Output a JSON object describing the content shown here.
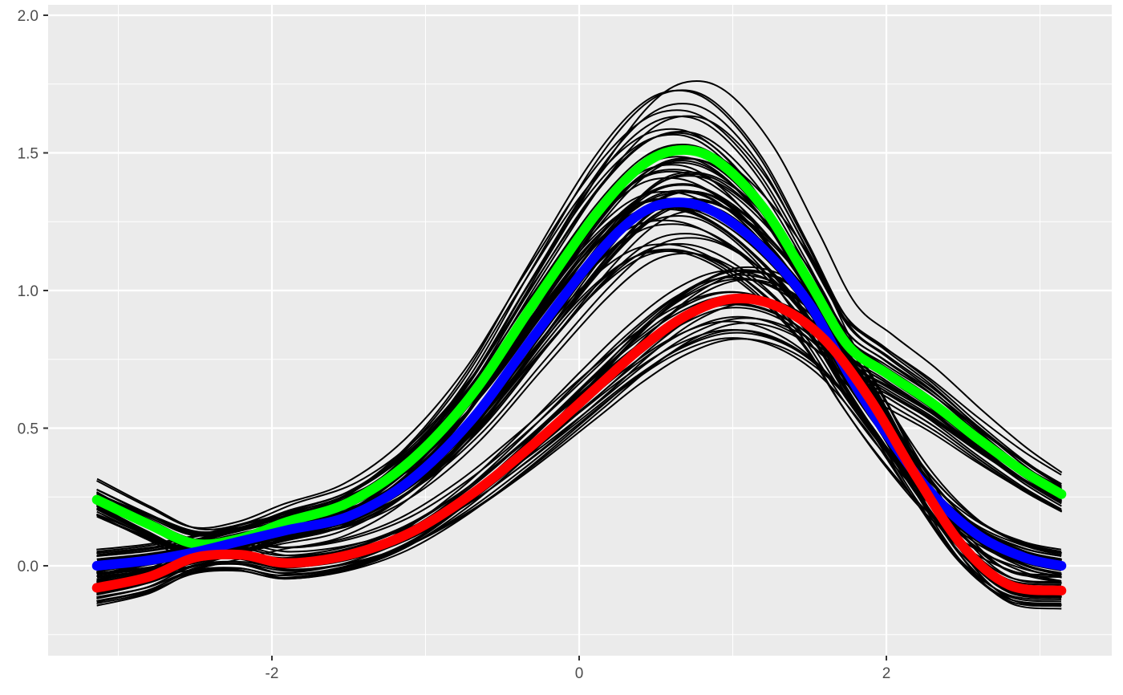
{
  "chart_data": {
    "type": "line",
    "title": "",
    "xlabel": "",
    "ylabel": "",
    "xlim": [
      -3.3,
      3.5
    ],
    "ylim": [
      -0.25,
      2.0
    ],
    "x_ticks": [
      -2,
      0,
      2
    ],
    "x_tick_labels": [
      "-2",
      "0",
      "2"
    ],
    "y_ticks": [
      0.0,
      0.5,
      1.0,
      1.5,
      2.0
    ],
    "y_tick_labels": [
      "0.0",
      "0.5",
      "1.0",
      "1.5",
      "2.0"
    ],
    "grid": true,
    "background": "#ebebeb",
    "grid_color": "#ffffff",
    "highlight_series": [
      {
        "color": "#00ff00",
        "points": [
          [
            -3.14,
            0.24
          ],
          [
            -2.8,
            0.15
          ],
          [
            -2.5,
            0.08
          ],
          [
            -2.2,
            0.1
          ],
          [
            -1.9,
            0.16
          ],
          [
            -1.5,
            0.23
          ],
          [
            -1.1,
            0.38
          ],
          [
            -0.7,
            0.62
          ],
          [
            -0.3,
            0.95
          ],
          [
            0.1,
            1.27
          ],
          [
            0.4,
            1.45
          ],
          [
            0.65,
            1.51
          ],
          [
            0.9,
            1.47
          ],
          [
            1.2,
            1.3
          ],
          [
            1.5,
            1.03
          ],
          [
            1.75,
            0.8
          ],
          [
            2.0,
            0.7
          ],
          [
            2.3,
            0.59
          ],
          [
            2.6,
            0.46
          ],
          [
            2.9,
            0.34
          ],
          [
            3.14,
            0.26
          ]
        ]
      },
      {
        "color": "#0000ff",
        "points": [
          [
            -3.14,
            0.0
          ],
          [
            -2.8,
            0.02
          ],
          [
            -2.5,
            0.05
          ],
          [
            -2.2,
            0.09
          ],
          [
            -1.9,
            0.13
          ],
          [
            -1.5,
            0.18
          ],
          [
            -1.1,
            0.31
          ],
          [
            -0.7,
            0.53
          ],
          [
            -0.3,
            0.83
          ],
          [
            0.1,
            1.12
          ],
          [
            0.4,
            1.28
          ],
          [
            0.65,
            1.32
          ],
          [
            0.9,
            1.28
          ],
          [
            1.2,
            1.15
          ],
          [
            1.5,
            0.95
          ],
          [
            1.75,
            0.7
          ],
          [
            2.0,
            0.48
          ],
          [
            2.3,
            0.26
          ],
          [
            2.6,
            0.11
          ],
          [
            2.9,
            0.03
          ],
          [
            3.14,
            0.0
          ]
        ]
      },
      {
        "color": "#ff0000",
        "points": [
          [
            -3.14,
            -0.08
          ],
          [
            -2.8,
            -0.04
          ],
          [
            -2.5,
            0.03
          ],
          [
            -2.2,
            0.04
          ],
          [
            -1.9,
            0.01
          ],
          [
            -1.5,
            0.04
          ],
          [
            -1.1,
            0.12
          ],
          [
            -0.7,
            0.26
          ],
          [
            -0.3,
            0.44
          ],
          [
            0.1,
            0.64
          ],
          [
            0.4,
            0.79
          ],
          [
            0.7,
            0.91
          ],
          [
            1.0,
            0.97
          ],
          [
            1.3,
            0.94
          ],
          [
            1.6,
            0.82
          ],
          [
            1.9,
            0.6
          ],
          [
            2.2,
            0.32
          ],
          [
            2.5,
            0.07
          ],
          [
            2.8,
            -0.07
          ],
          [
            3.14,
            -0.09
          ]
        ]
      }
    ]
  }
}
